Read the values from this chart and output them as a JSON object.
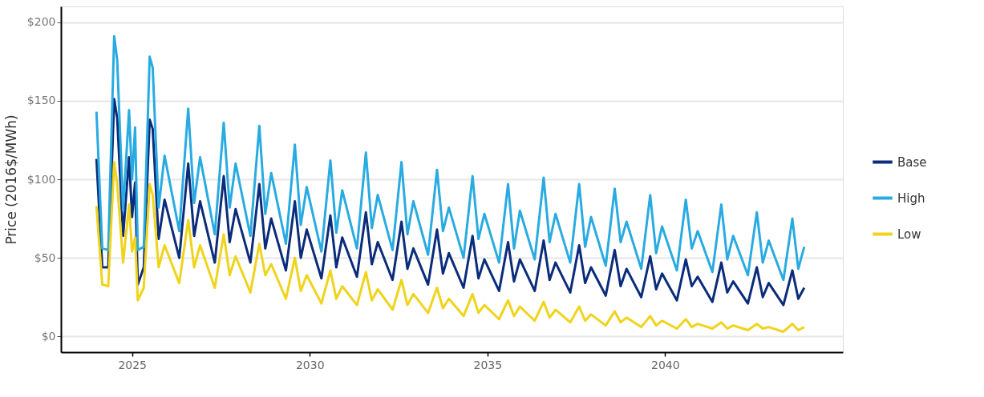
{
  "chart_data": {
    "type": "line",
    "ylabel": "Price (2016$/MWh)",
    "x": [
      "2024-01",
      "2024-03",
      "2024-05",
      "2024-07",
      "2024-08",
      "2024-10",
      "2024-12",
      "2025-01",
      "2025-02",
      "2025-03",
      "2025-05",
      "2025-07",
      "2025-08",
      "2025-10",
      "2025-12",
      "2026-05",
      "2026-08",
      "2026-10",
      "2026-12",
      "2027-05",
      "2027-08",
      "2027-10",
      "2027-12",
      "2028-05",
      "2028-08",
      "2028-10",
      "2028-12",
      "2029-05",
      "2029-08",
      "2029-10",
      "2029-12",
      "2030-05",
      "2030-08",
      "2030-10",
      "2030-12",
      "2031-05",
      "2031-08",
      "2031-10",
      "2031-12",
      "2032-05",
      "2032-08",
      "2032-10",
      "2032-12",
      "2033-05",
      "2033-08",
      "2033-10",
      "2033-12",
      "2034-05",
      "2034-08",
      "2034-10",
      "2034-12",
      "2035-05",
      "2035-08",
      "2035-10",
      "2035-12",
      "2036-05",
      "2036-08",
      "2036-10",
      "2036-12",
      "2037-05",
      "2037-08",
      "2037-10",
      "2037-12",
      "2038-05",
      "2038-08",
      "2038-10",
      "2038-12",
      "2039-05",
      "2039-08",
      "2039-10",
      "2039-12",
      "2040-05",
      "2040-08",
      "2040-10",
      "2040-12",
      "2041-05",
      "2041-08",
      "2041-10",
      "2041-12",
      "2042-05",
      "2042-08",
      "2042-10",
      "2042-12",
      "2043-05",
      "2043-08",
      "2043-10",
      "2043-12"
    ],
    "series": [
      {
        "name": "Base",
        "color": "#0b2c7a",
        "values": [
          113,
          44,
          44,
          151,
          139,
          64,
          114,
          76,
          98,
          33,
          44,
          138,
          132,
          62,
          87,
          50,
          110,
          64,
          86,
          47,
          102,
          60,
          81,
          47,
          97,
          56,
          75,
          42,
          86,
          50,
          68,
          37,
          77,
          44,
          63,
          38,
          79,
          46,
          60,
          36,
          73,
          43,
          56,
          33,
          68,
          40,
          53,
          31,
          64,
          37,
          49,
          29,
          60,
          35,
          49,
          29,
          61,
          36,
          47,
          28,
          58,
          34,
          44,
          26,
          55,
          32,
          43,
          25,
          51,
          30,
          40,
          23,
          49,
          32,
          38,
          22,
          47,
          28,
          35,
          21,
          44,
          25,
          34,
          20,
          42,
          24,
          31
        ]
      },
      {
        "name": "High",
        "color": "#29abe2",
        "values": [
          143,
          56,
          55,
          191,
          176,
          80,
          144,
          100,
          133,
          55,
          57,
          178,
          171,
          82,
          115,
          67,
          145,
          85,
          114,
          65,
          136,
          82,
          110,
          64,
          134,
          78,
          104,
          59,
          122,
          71,
          95,
          54,
          112,
          66,
          93,
          56,
          117,
          69,
          90,
          55,
          111,
          65,
          86,
          52,
          106,
          67,
          82,
          50,
          102,
          62,
          78,
          47,
          97,
          56,
          80,
          49,
          101,
          60,
          78,
          47,
          97,
          57,
          76,
          45,
          94,
          60,
          73,
          43,
          90,
          53,
          70,
          42,
          87,
          56,
          67,
          41,
          84,
          49,
          64,
          39,
          79,
          47,
          61,
          36,
          75,
          43,
          57
        ]
      },
      {
        "name": "Low",
        "color": "#f0d31c",
        "values": [
          83,
          33,
          32,
          111,
          97,
          47,
          84,
          54,
          63,
          23,
          31,
          97,
          90,
          44,
          58,
          34,
          74,
          44,
          58,
          31,
          65,
          39,
          51,
          28,
          59,
          39,
          46,
          24,
          50,
          29,
          39,
          21,
          42,
          24,
          32,
          20,
          41,
          23,
          30,
          17,
          36,
          20,
          27,
          15,
          31,
          18,
          24,
          13,
          27,
          15,
          20,
          11,
          23,
          13,
          19,
          10,
          22,
          12,
          17,
          9,
          19,
          10,
          14,
          7,
          16,
          9,
          12,
          6,
          13,
          7,
          10,
          5,
          11,
          6,
          8,
          5,
          9,
          5,
          7,
          4,
          8,
          5,
          6,
          3,
          8,
          4,
          6
        ]
      }
    ],
    "xlim": [
      "2023-01",
      "2045-01"
    ],
    "xticks": [
      {
        "value": "2025",
        "label": "2025"
      },
      {
        "value": "2030",
        "label": "2030"
      },
      {
        "value": "2035",
        "label": "2035"
      },
      {
        "value": "2040",
        "label": "2040"
      }
    ],
    "ylim": [
      -10,
      210
    ],
    "yticks": [
      {
        "value": 0,
        "label": "$0"
      },
      {
        "value": 50,
        "label": "$50"
      },
      {
        "value": 100,
        "label": "$100"
      },
      {
        "value": 150,
        "label": "$150"
      },
      {
        "value": 200,
        "label": "$200"
      }
    ],
    "grid": "y",
    "legend": "right",
    "line_style": "solid",
    "marker": "none"
  }
}
